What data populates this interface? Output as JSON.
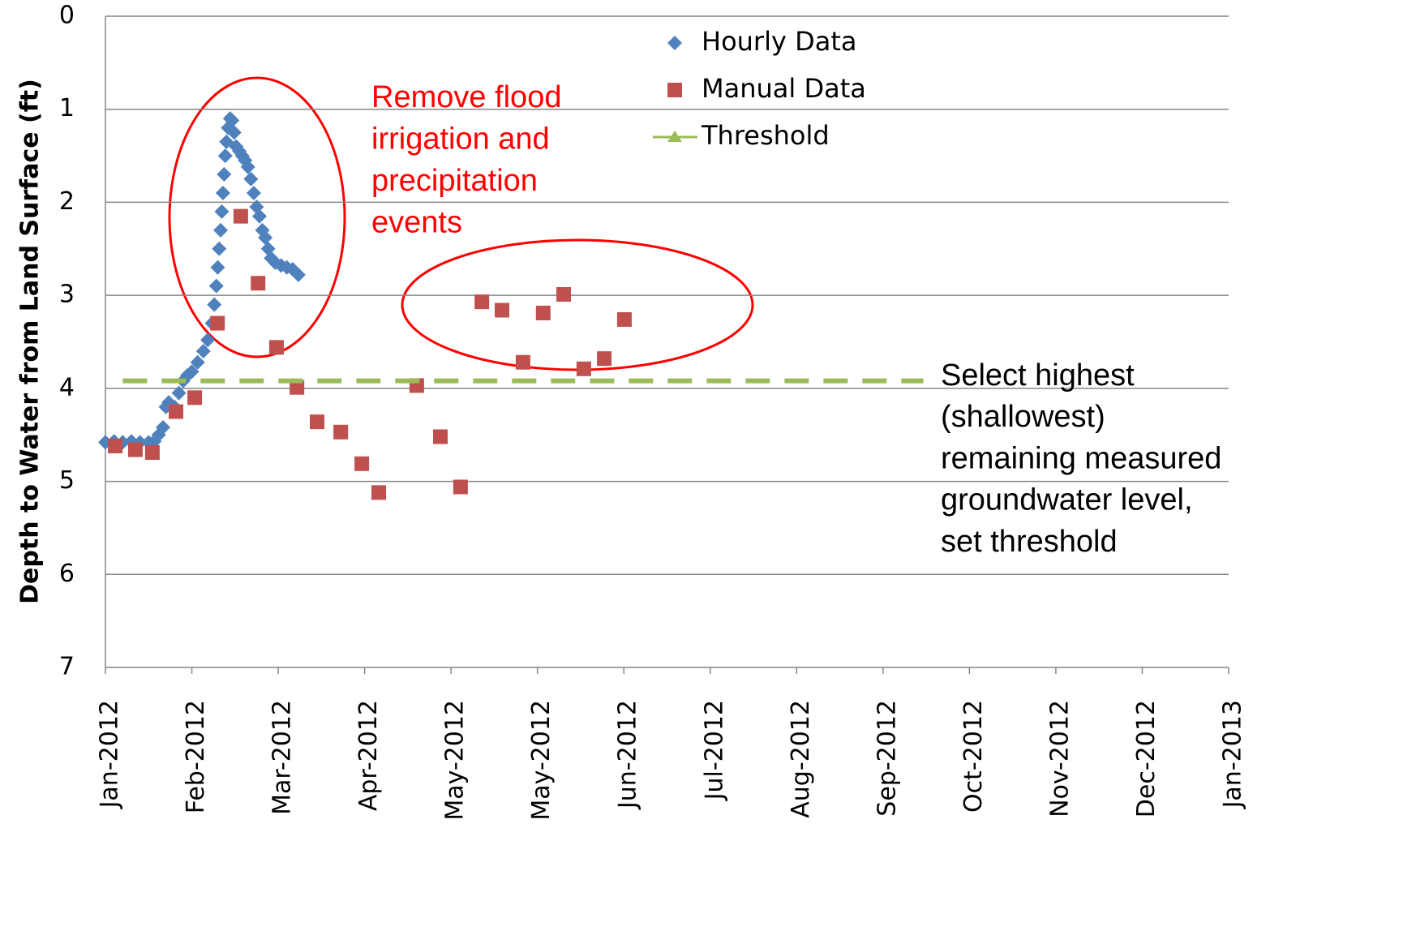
{
  "chart_data": {
    "type": "scatter",
    "y_label": "Depth to Water from Land Surface (ft)",
    "ylim": [
      0,
      7
    ],
    "y_inverted": true,
    "yticks": [
      0,
      1,
      2,
      3,
      4,
      5,
      6,
      7
    ],
    "xlim": [
      0,
      390
    ],
    "xticks": [
      {
        "value": 0,
        "label": "Jan-2012"
      },
      {
        "value": 30,
        "label": "Feb-2012"
      },
      {
        "value": 60,
        "label": "Mar-2012"
      },
      {
        "value": 90,
        "label": "Apr-2012"
      },
      {
        "value": 120,
        "label": "May-2012"
      },
      {
        "value": 150,
        "label": "May-2012"
      },
      {
        "value": 180,
        "label": "Jun-2012"
      },
      {
        "value": 210,
        "label": "Jul-2012"
      },
      {
        "value": 240,
        "label": "Aug-2012"
      },
      {
        "value": 270,
        "label": "Sep-2012"
      },
      {
        "value": 300,
        "label": "Oct-2012"
      },
      {
        "value": 330,
        "label": "Nov-2012"
      },
      {
        "value": 360,
        "label": "Dec-2012"
      },
      {
        "value": 390,
        "label": "Jan-2013"
      }
    ],
    "grid": true,
    "series": [
      {
        "name": "Hourly Data",
        "color": "#4f81bd",
        "marker": "diamond",
        "x": [
          0,
          3,
          6,
          9,
          12,
          15,
          17,
          18.5,
          20,
          21,
          22,
          24,
          25.5,
          27,
          28.5,
          30,
          32,
          34,
          35.5,
          37,
          37.8,
          38.5,
          39,
          39.5,
          40,
          40.4,
          40.8,
          41.2,
          41.6,
          42,
          42.6,
          43.3,
          44,
          44.7,
          45.4,
          46.5,
          47.5,
          48.5,
          49.5,
          50.5,
          51.5,
          52.5,
          53.5,
          54.5,
          55.5,
          56.5,
          57.5,
          59,
          61,
          63,
          65,
          67
        ],
        "values": [
          4.58,
          4.57,
          4.58,
          4.57,
          4.58,
          4.58,
          4.57,
          4.5,
          4.42,
          4.2,
          4.15,
          4.2,
          4.05,
          3.92,
          3.86,
          3.82,
          3.72,
          3.6,
          3.48,
          3.3,
          3.1,
          2.9,
          2.7,
          2.5,
          2.3,
          2.1,
          1.9,
          1.7,
          1.5,
          1.35,
          1.2,
          1.1,
          1.12,
          1.25,
          1.4,
          1.45,
          1.5,
          1.55,
          1.62,
          1.75,
          1.9,
          2.05,
          2.15,
          2.3,
          2.38,
          2.5,
          2.6,
          2.65,
          2.68,
          2.7,
          2.72,
          2.78
        ]
      },
      {
        "name": "Manual Data",
        "color": "#c0504d",
        "marker": "square",
        "x": [
          3.4,
          10.4,
          16.3,
          24.5,
          31,
          38.9,
          47,
          53,
          59.4,
          66.5,
          73.5,
          81.7,
          89,
          94.9,
          108.1,
          116.3,
          123.3,
          130.7,
          137.7,
          145,
          152,
          159.1,
          166.1,
          173.2,
          180.2
        ],
        "values": [
          4.62,
          4.66,
          4.69,
          4.25,
          4.1,
          3.3,
          2.15,
          2.87,
          3.56,
          3.99,
          4.36,
          4.47,
          4.81,
          5.12,
          3.97,
          4.52,
          5.06,
          3.07,
          3.16,
          3.72,
          3.19,
          2.99,
          3.79,
          3.68,
          3.26
        ]
      },
      {
        "name": "Threshold",
        "color": "#9bbb59",
        "marker": "line",
        "x": [
          6,
          284
        ],
        "values": [
          3.92,
          3.92
        ]
      }
    ],
    "annotations": [
      {
        "color": "#ff0000",
        "lines": [
          "Remove flood",
          "irrigation and",
          "precipitation",
          "events"
        ]
      },
      {
        "color": "#000000",
        "lines": [
          "Select highest",
          "(shallowest)",
          "remaining measured",
          "groundwater level,",
          "set threshold"
        ]
      }
    ]
  }
}
